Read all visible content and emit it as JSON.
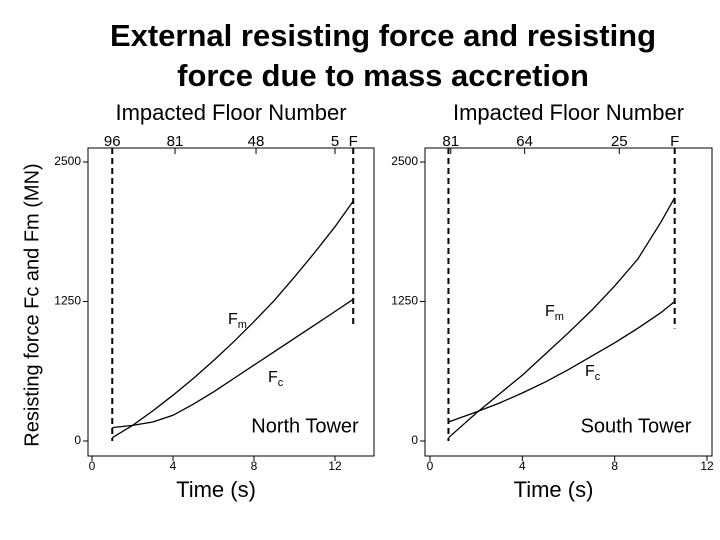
{
  "title": [
    "External resisting force and resisting",
    "force due to mass accretion"
  ],
  "ylabel": "Resisting force Fc and Fm (MN)",
  "chart_data": [
    {
      "type": "line",
      "panel_label": "North Tower",
      "xlabel": "Time (s)",
      "top_axis_label": "Impacted Floor Number",
      "x": [
        1,
        2,
        3,
        4,
        5,
        6,
        7,
        8,
        9,
        10,
        11,
        12,
        12.9
      ],
      "series": [
        {
          "name": "Fm",
          "color": "#000000",
          "values": [
            30,
            140,
            270,
            410,
            560,
            720,
            890,
            1070,
            1260,
            1470,
            1690,
            1920,
            2150
          ]
        },
        {
          "name": "Fc",
          "color": "#000000",
          "values": [
            120,
            140,
            170,
            230,
            330,
            440,
            560,
            680,
            800,
            920,
            1040,
            1160,
            1270
          ]
        }
      ],
      "xlim": [
        0,
        14
      ],
      "xticks": [
        0,
        4,
        8,
        12
      ],
      "ylim": [
        0,
        2500
      ],
      "yticks": [
        0,
        1250,
        2500
      ],
      "top_ticks": [
        {
          "value": 1.0,
          "label": "96"
        },
        {
          "value": 4.1,
          "label": "81"
        },
        {
          "value": 8.1,
          "label": "48"
        },
        {
          "value": 12.0,
          "label": "5"
        },
        {
          "value": 12.9,
          "label": "F"
        }
      ],
      "vlines": [
        1.0,
        12.9
      ]
    },
    {
      "type": "line",
      "panel_label": "South Tower",
      "xlabel": "Time (s)",
      "top_axis_label": "Impacted Floor Number",
      "x": [
        0.8,
        2,
        3,
        4,
        5,
        6,
        7,
        8,
        9,
        10,
        10.6
      ],
      "series": [
        {
          "name": "Fm",
          "color": "#000000",
          "values": [
            30,
            250,
            420,
            590,
            780,
            970,
            1170,
            1390,
            1630,
            1960,
            2180
          ]
        },
        {
          "name": "Fc",
          "color": "#000000",
          "values": [
            170,
            260,
            340,
            430,
            530,
            640,
            760,
            880,
            1010,
            1150,
            1250
          ]
        }
      ],
      "xlim": [
        0,
        12
      ],
      "xticks": [
        0,
        4,
        8,
        12
      ],
      "ylim": [
        0,
        2500
      ],
      "yticks": [
        0,
        1250,
        2500
      ],
      "top_ticks": [
        {
          "value": 0.9,
          "label": "81"
        },
        {
          "value": 4.1,
          "label": "64"
        },
        {
          "value": 8.2,
          "label": "25"
        },
        {
          "value": 10.6,
          "label": "F"
        }
      ],
      "vlines": [
        0.8,
        10.6
      ]
    }
  ]
}
